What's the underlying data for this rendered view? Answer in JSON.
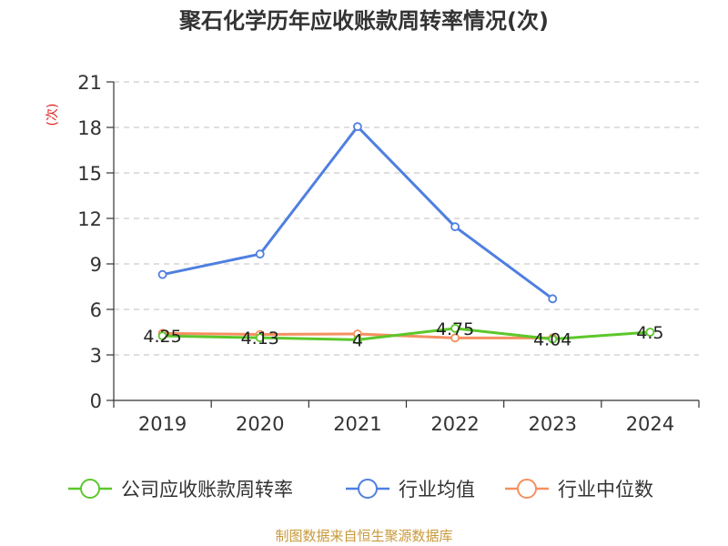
{
  "chart_data": {
    "type": "line",
    "title": "聚石化学历年应收账款周转率情况(次)",
    "ylabel": "(次)",
    "categories": [
      "2019",
      "2020",
      "2021",
      "2022",
      "2023",
      "2024"
    ],
    "ylim": [
      0,
      21
    ],
    "yticks": [
      0,
      3,
      6,
      9,
      12,
      15,
      18,
      21
    ],
    "grid": true,
    "legend_position": "bottom",
    "series": [
      {
        "name": "公司应收账款周转率",
        "color": "#5cc72a",
        "values": [
          4.25,
          4.13,
          4,
          4.75,
          4.04,
          4.5
        ],
        "labels": [
          "4.25",
          "4.13",
          "4",
          "4.75",
          "4.04",
          "4.5"
        ]
      },
      {
        "name": "行业均值",
        "color": "#4f7fe0",
        "values": [
          8.3,
          9.65,
          18.05,
          11.45,
          6.7,
          null
        ]
      },
      {
        "name": "行业中位数",
        "color": "#f59060",
        "values": [
          4.42,
          4.35,
          4.38,
          4.12,
          4.12,
          null
        ]
      }
    ]
  },
  "source": "制图数据来自恒生聚源数据库"
}
